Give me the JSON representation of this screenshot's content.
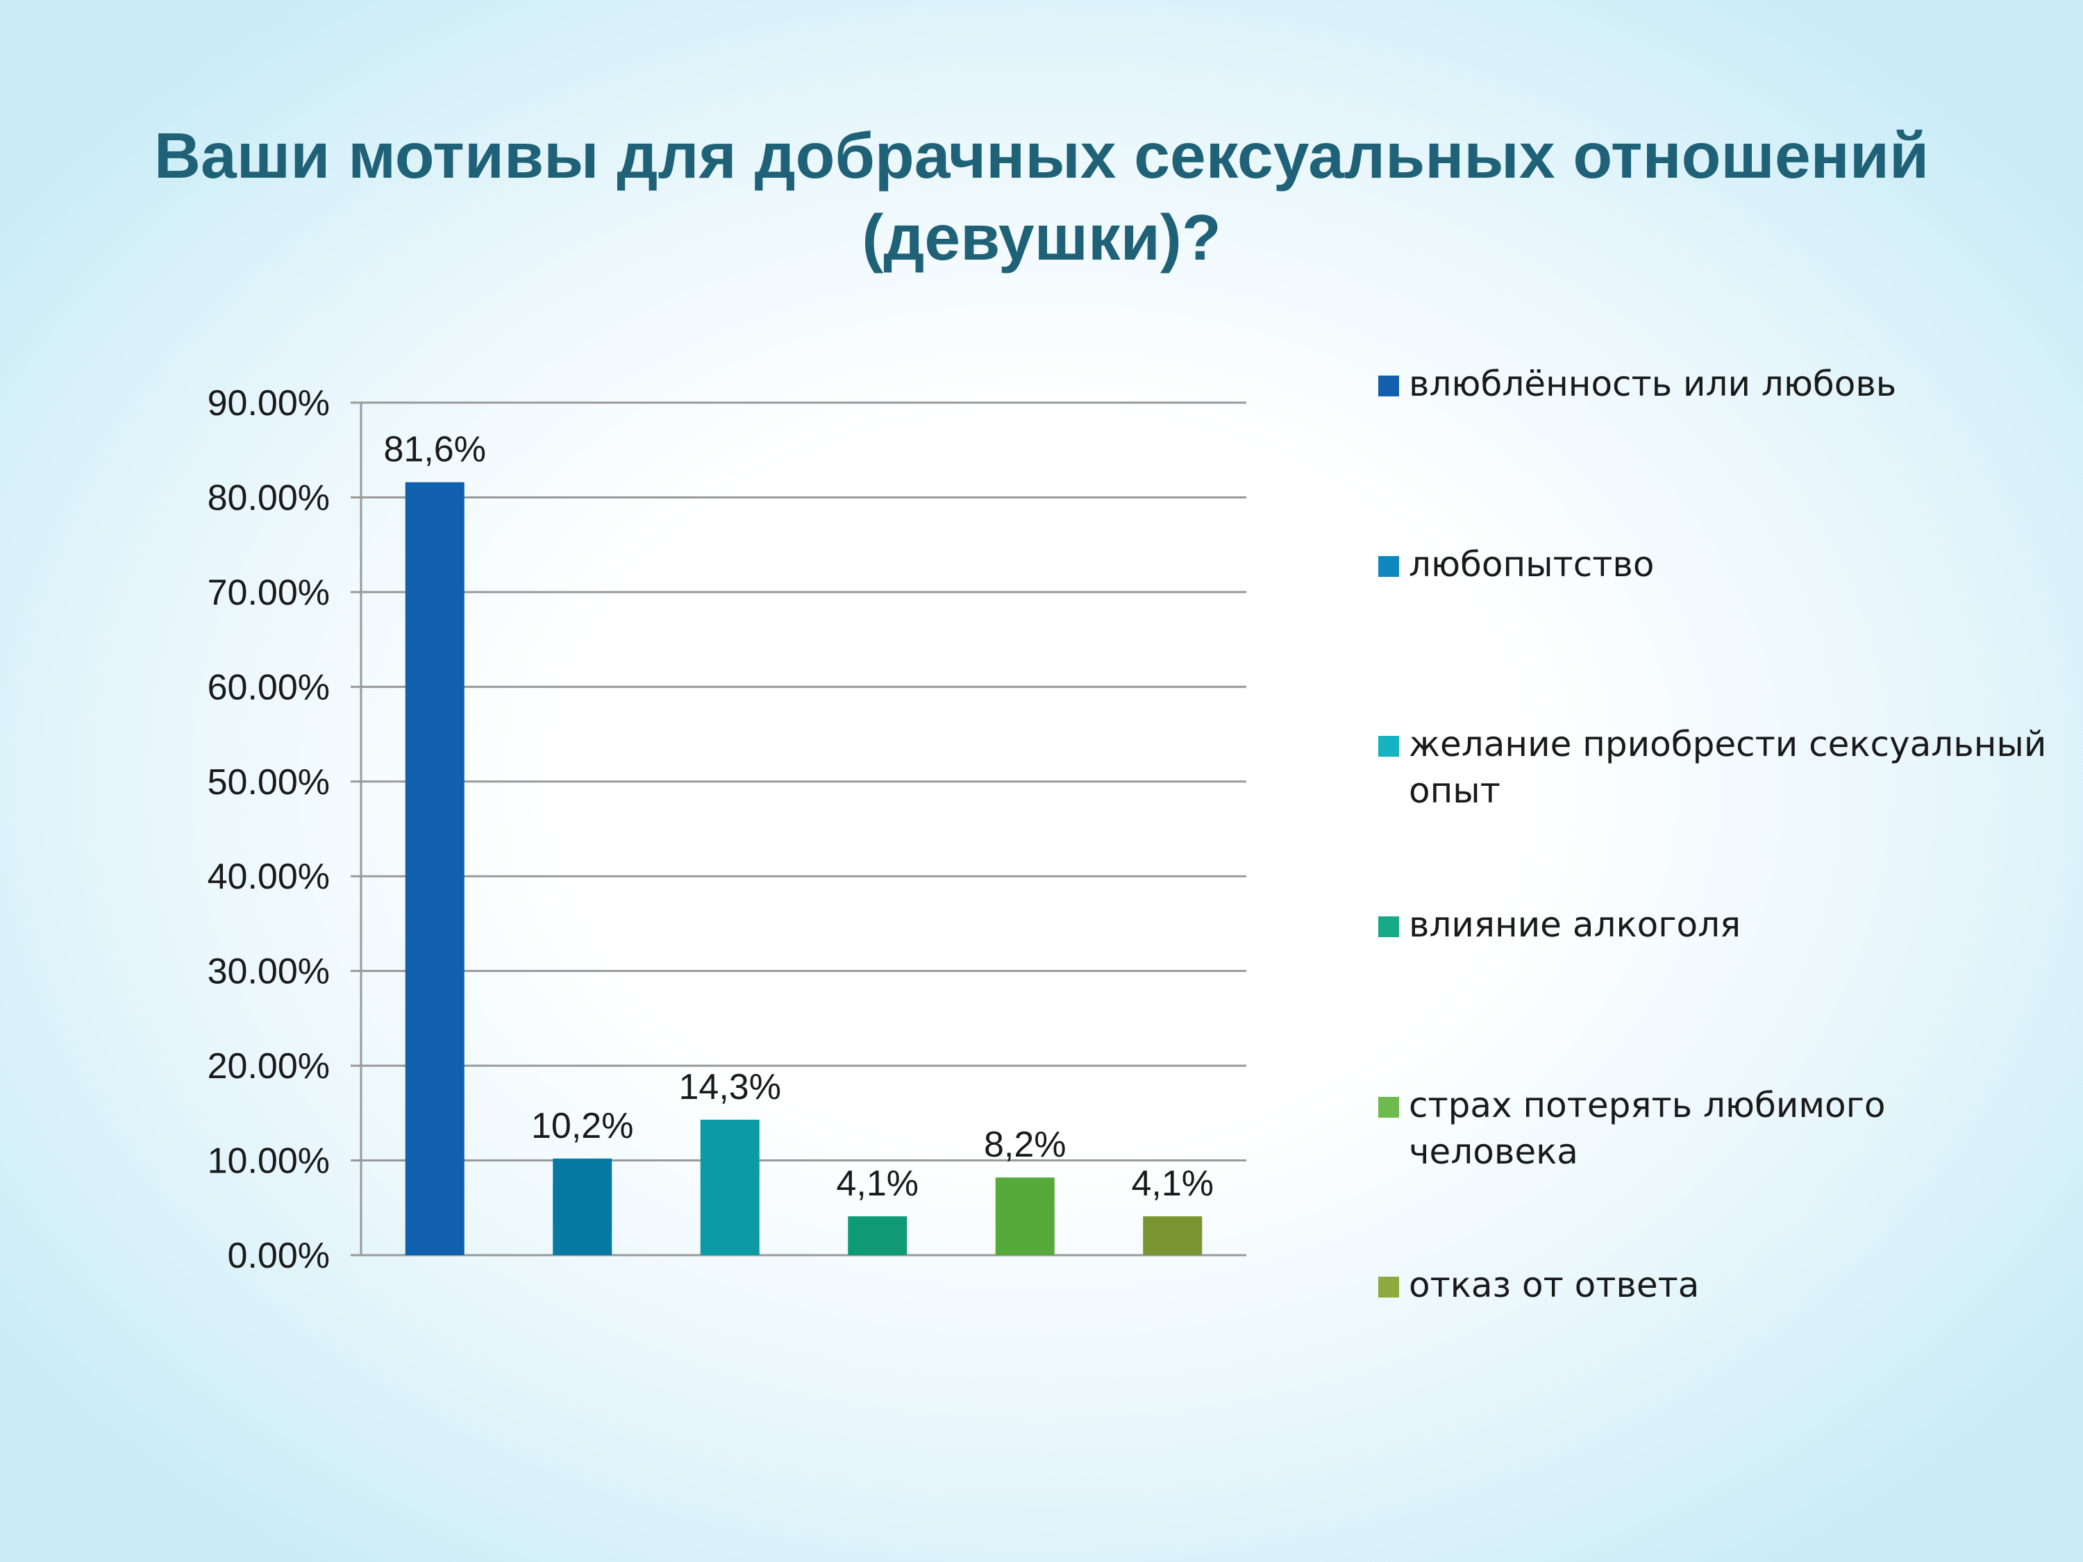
{
  "title": {
    "line1": "Ваши мотивы для добрачных сексуальных отношений",
    "line2": "(девушки)?"
  },
  "chart_data": {
    "type": "bar",
    "title": "Ваши мотивы для добрачных сексуальных отношений (девушки)?",
    "categories": [
      "влюблённость или любовь",
      "любопытство",
      "желание приобрести сексуальный опыт",
      "влияние алкоголя",
      "страх потерять любимого человека",
      "отказ от ответа"
    ],
    "values": [
      81.6,
      10.2,
      14.3,
      4.1,
      8.2,
      4.1
    ],
    "data_labels": [
      "81,6%",
      "10,2%",
      "14,3%",
      "4,1%",
      "8,2%",
      "4,1%"
    ],
    "colors": [
      "#1060ad",
      "#0679a2",
      "#0c9ba5",
      "#0f9a76",
      "#56aa3a",
      "#7a9432"
    ],
    "y_ticks": [
      "0.00%",
      "10.00%",
      "20.00%",
      "30.00%",
      "40.00%",
      "50.00%",
      "60.00%",
      "70.00%",
      "80.00%",
      "90.00%"
    ],
    "ylim": [
      0,
      90
    ],
    "grid": true,
    "legend_position": "right",
    "legend": [
      {
        "label": "влюблённость или любовь",
        "color": "#1060ad"
      },
      {
        "label": "любопытство",
        "color": "#0f88c0"
      },
      {
        "label": "желание приобрести сексуальный опыт",
        "color": "#14b3c0"
      },
      {
        "label": "влияние алкоголя",
        "color": "#16aa86"
      },
      {
        "label": "страх потерять любимого человека",
        "color": "#6dbb4c"
      },
      {
        "label": "отказ от ответа",
        "color": "#8eaa3e"
      }
    ]
  },
  "colors": {
    "title": "#1f6277",
    "gridline": "#999999"
  }
}
